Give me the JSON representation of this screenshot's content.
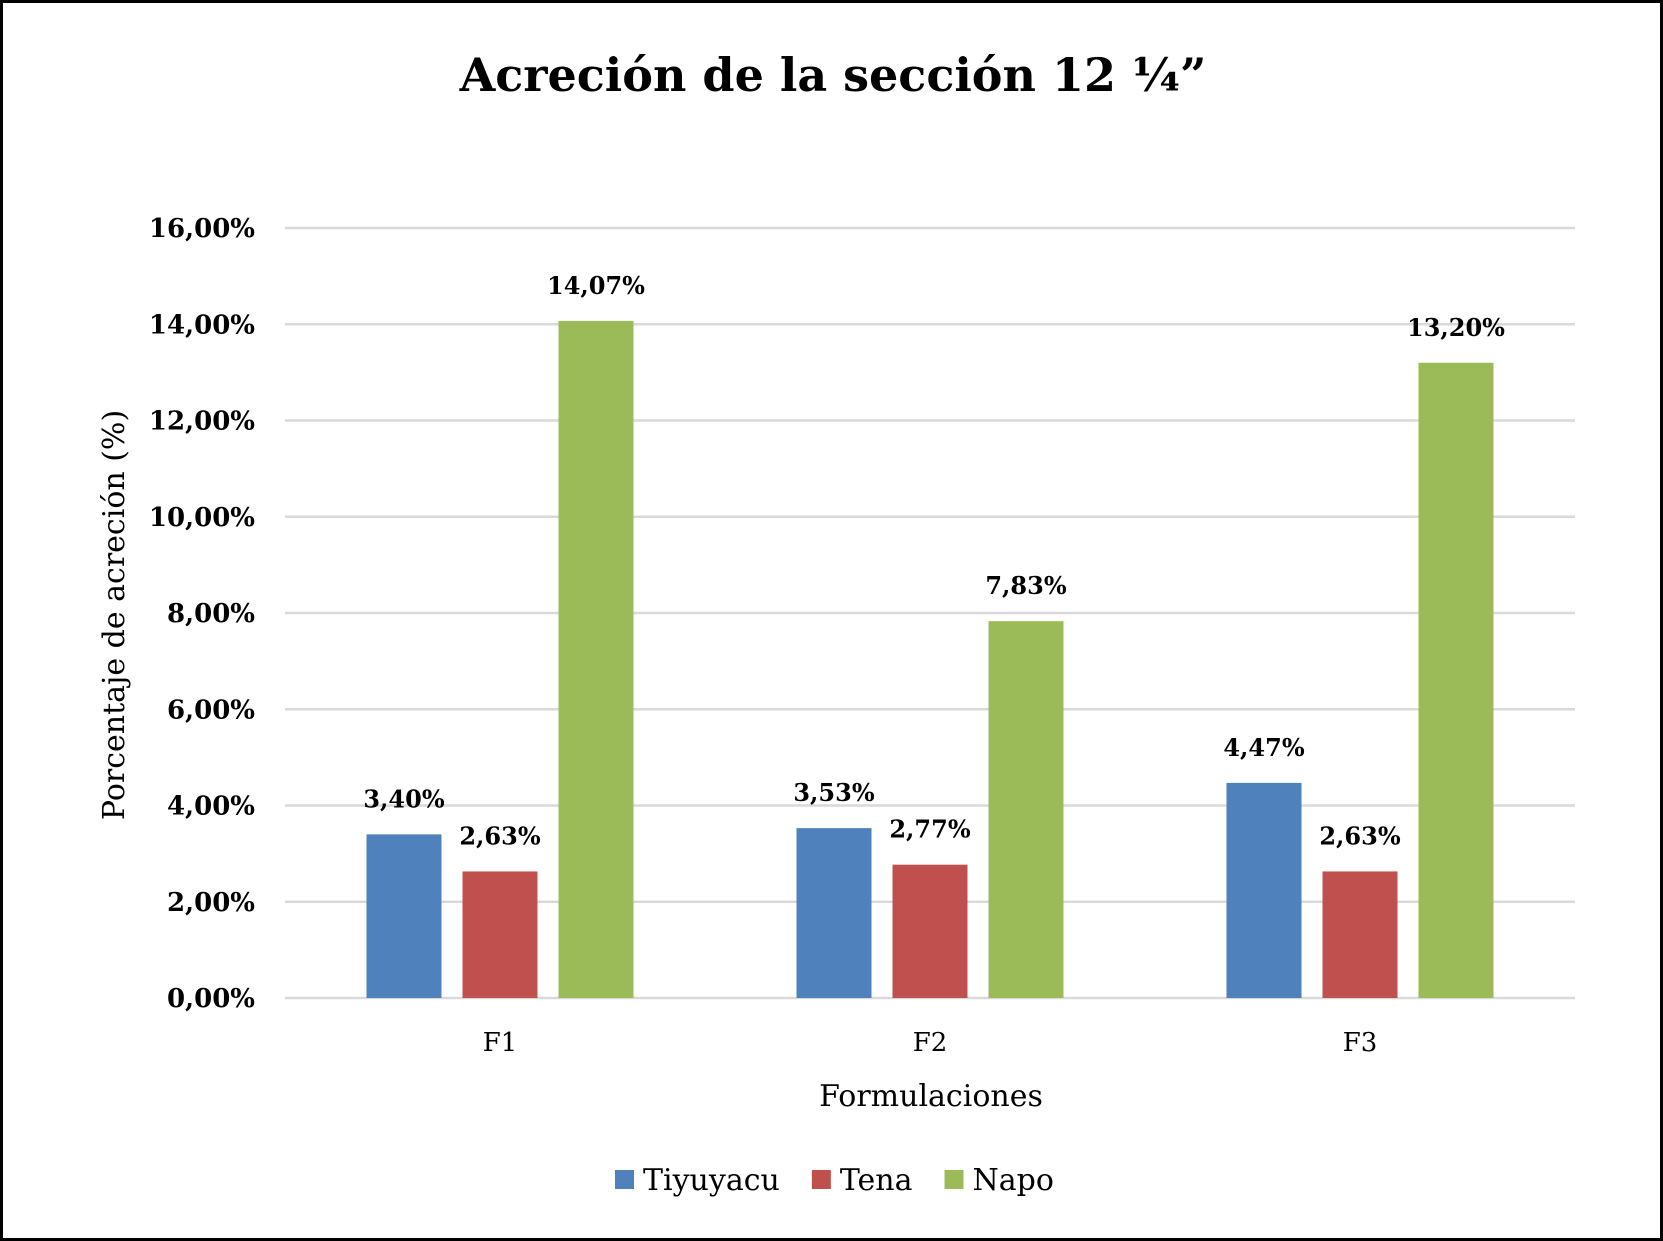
{
  "chart_data": {
    "type": "bar",
    "title": "Acreción de la sección 12 ¼”",
    "xlabel": "Formulaciones",
    "ylabel": "Porcentaje de acreción (%)",
    "categories": [
      "F1",
      "F2",
      "F3"
    ],
    "series": [
      {
        "name": "Tiyuyacu",
        "color": "#4F81BD",
        "values": [
          3.4,
          3.53,
          4.47
        ],
        "labels": [
          "3,40%",
          "3,53%",
          "4,47%"
        ]
      },
      {
        "name": "Tena",
        "color": "#C0504D",
        "values": [
          2.63,
          2.77,
          2.63
        ],
        "labels": [
          "2,63%",
          "2,77%",
          "2,63%"
        ]
      },
      {
        "name": "Napo",
        "color": "#9BBB59",
        "values": [
          14.07,
          7.83,
          13.2
        ],
        "labels": [
          "14,07%",
          "7,83%",
          "13,20%"
        ]
      }
    ],
    "ylim": [
      0,
      16
    ],
    "yticks": [
      0,
      2,
      4,
      6,
      8,
      10,
      12,
      14,
      16
    ],
    "ytick_labels": [
      "0,00%",
      "2,00%",
      "4,00%",
      "6,00%",
      "8,00%",
      "10,00%",
      "12,00%",
      "14,00%",
      "16,00%"
    ],
    "grid": true,
    "gridline_color": "#D9D9D9",
    "legend_position": "bottom"
  }
}
